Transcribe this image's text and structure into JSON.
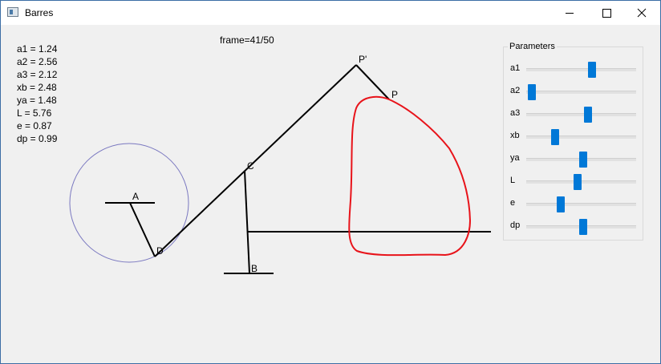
{
  "window": {
    "title": "Barres"
  },
  "info": [
    "a1 = 1.24",
    "a2 = 2.56",
    "a3 = 2.12",
    "xb = 2.48",
    "ya = 1.48",
    "L = 5.76",
    "e = 0.87",
    "dp = 0.99"
  ],
  "frame_label": "frame=41/50",
  "parameters": {
    "title": "Parameters",
    "sliders": [
      {
        "label": "a1",
        "value": 0.59
      },
      {
        "label": "a2",
        "value": 0.0
      },
      {
        "label": "a3",
        "value": 0.55
      },
      {
        "label": "xb",
        "value": 0.23
      },
      {
        "label": "ya",
        "value": 0.5
      },
      {
        "label": "L",
        "value": 0.45
      },
      {
        "label": "e",
        "value": 0.28
      },
      {
        "label": "dp",
        "value": 0.5
      }
    ]
  },
  "diagram": {
    "points": {
      "A": "A",
      "B": "B",
      "C": "C",
      "D": "D",
      "P": "P",
      "Pprime": "P'"
    },
    "colors": {
      "circle": "#7a78c0",
      "curve": "#e8131a",
      "bars": "#000000"
    }
  }
}
